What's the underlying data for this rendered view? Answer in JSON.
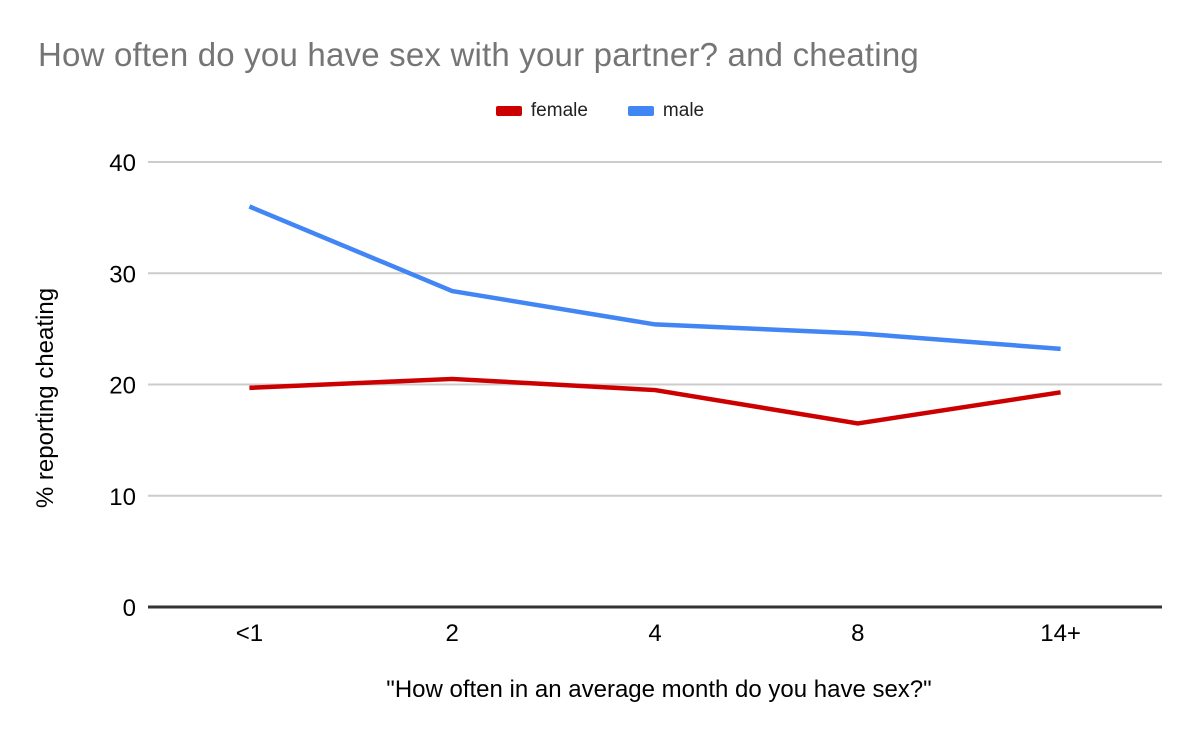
{
  "chart_data": {
    "type": "line",
    "title": "How often do you have sex with your partner? and cheating",
    "categories": [
      "<1",
      "2",
      "4",
      "8",
      "14+"
    ],
    "series": [
      {
        "name": "female",
        "color": "#cc0000",
        "values": [
          19.7,
          20.5,
          19.5,
          16.5,
          19.3
        ]
      },
      {
        "name": "male",
        "color": "#4285f4",
        "values": [
          36.0,
          28.4,
          25.4,
          24.6,
          23.2
        ]
      }
    ],
    "xlabel": "\"How often in an average month do you have sex?\"",
    "ylabel": "% reporting cheating",
    "ylim": [
      0,
      40
    ],
    "yticks": [
      0,
      10,
      20,
      30,
      40
    ],
    "grid": "on",
    "legend_position": "top",
    "colors": {
      "title_text": "#757575",
      "axis_text": "#000000",
      "legend_text": "#212121",
      "gridline": "#cccccc",
      "axis_line": "#333333",
      "background": "#ffffff"
    }
  }
}
